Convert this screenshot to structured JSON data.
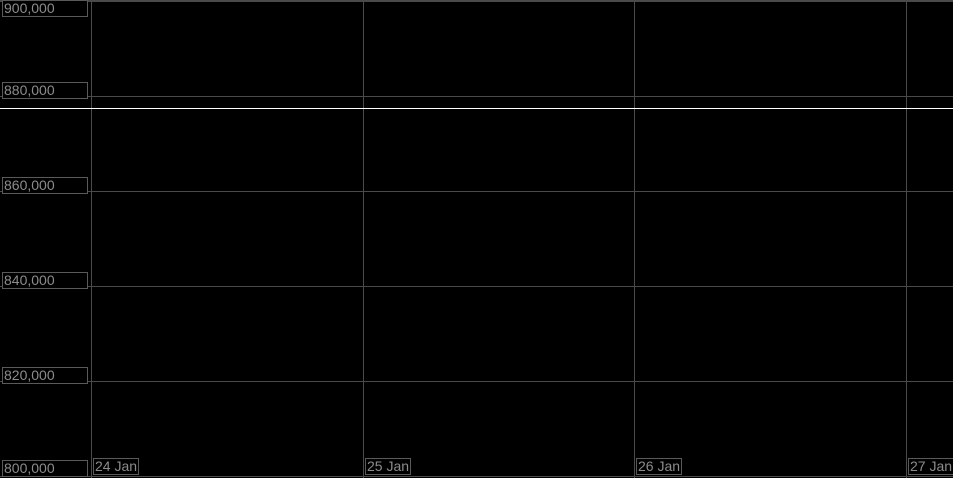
{
  "chart_data": {
    "type": "line",
    "title": "",
    "xlabel": "",
    "ylabel": "",
    "ylim": [
      800000,
      900000
    ],
    "y_ticks": [
      "900,000",
      "880,000",
      "860,000",
      "840,000",
      "820,000",
      "800,000"
    ],
    "y_tick_values": [
      900000,
      880000,
      860000,
      840000,
      820000,
      800000
    ],
    "x_ticks": [
      "24 Jan",
      "25 Jan",
      "26 Jan",
      "27 Jan"
    ],
    "grid": true,
    "series": [
      {
        "x": [
          "24 Jan",
          "27 Jan"
        ],
        "y": [
          877500,
          877500
        ],
        "color": "#ffffff"
      }
    ],
    "colors": {
      "background": "#000000",
      "grid": "#4a4a4a",
      "label_text": "#8c8c8c",
      "line": "#ffffff"
    }
  }
}
